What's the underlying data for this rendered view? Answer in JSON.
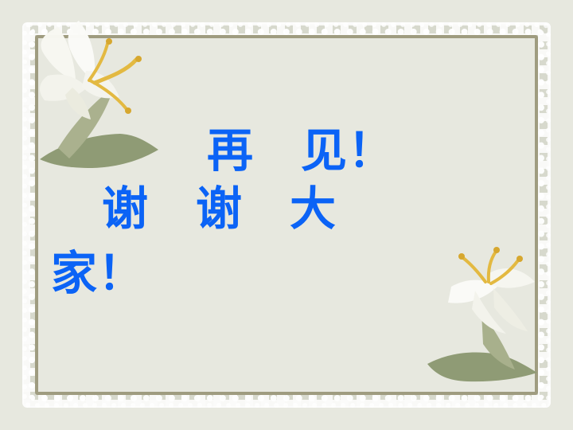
{
  "page": {
    "background": "#e7e8df"
  },
  "message": {
    "line1": "再　见！",
    "line2": "谢　谢　大",
    "line3": "家！"
  },
  "colors": {
    "text": "#0b63f6",
    "frame": "#9f9c80",
    "lace": "#ffffff",
    "leaf": "#8e9a73",
    "petal": "#f8f8f2",
    "stamen": "#e3b93e"
  },
  "icons": {
    "top_left": "lily-flower-icon",
    "bottom_right": "lily-flower-icon"
  }
}
